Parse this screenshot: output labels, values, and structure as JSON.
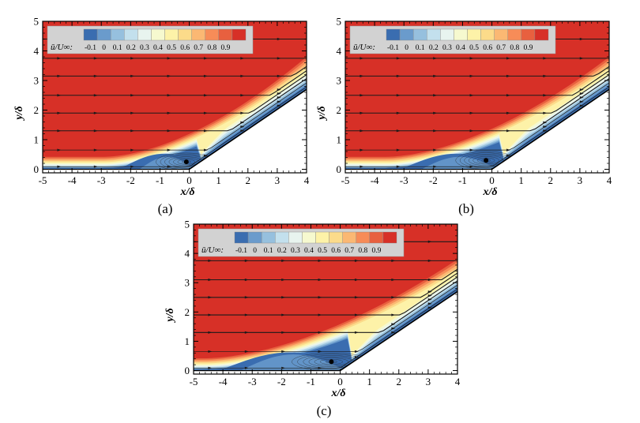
{
  "chart_data": [
    {
      "type": "heatmap",
      "panel": "(a)",
      "title": "",
      "xlabel": "x/δ",
      "ylabel": "y/δ",
      "xlim": [
        -5,
        4
      ],
      "ylim": [
        0,
        5
      ],
      "xticks": [
        "-5",
        "-4",
        "-3",
        "-2",
        "-1",
        "0",
        "1",
        "2",
        "3",
        "4"
      ],
      "yticks": [
        "0",
        "1",
        "2",
        "3",
        "4",
        "5"
      ],
      "grid": false,
      "colorbar": {
        "title": "ū/U∞:",
        "levels": [
          "-0.1",
          "0",
          "0.1",
          "0.2",
          "0.3",
          "0.4",
          "0.5",
          "0.6",
          "0.7",
          "0.8",
          "0.9"
        ],
        "colors": [
          "#3a6db0",
          "#6a9bcc",
          "#96c0de",
          "#c3e0ed",
          "#e8f4ef",
          "#f6f9cf",
          "#fdf2a8",
          "#fcdb8a",
          "#fbb873",
          "#f78c58",
          "#e8603f",
          "#d73027"
        ],
        "placement": "top-left"
      },
      "geometry": {
        "ramp_start_x": 0,
        "ramp_end": [
          4,
          2.7
        ],
        "ramp_angle_deg": 34
      },
      "separation_x": -2.3,
      "vortex_center": [
        -0.1,
        0.25
      ],
      "boundary_layer_top_at_left": 0.4,
      "shear_layer_top_at_right": 3.8,
      "streamlines_y_at_left": [
        4.4,
        3.75,
        3.15,
        2.5,
        1.9,
        1.3,
        0.65,
        0.03
      ]
    },
    {
      "type": "heatmap",
      "panel": "(b)",
      "title": "",
      "xlabel": "x/δ",
      "ylabel": "y/δ",
      "xlim": [
        -5,
        4
      ],
      "ylim": [
        0,
        5
      ],
      "xticks": [
        "-5",
        "-4",
        "-3",
        "-2",
        "-1",
        "0",
        "1",
        "2",
        "3",
        "4"
      ],
      "yticks": [
        "0",
        "1",
        "2",
        "3",
        "4",
        "5"
      ],
      "grid": false,
      "colorbar": {
        "title": "ū/U∞:",
        "levels": [
          "-0.1",
          "0",
          "0.1",
          "0.2",
          "0.3",
          "0.4",
          "0.5",
          "0.6",
          "0.7",
          "0.8",
          "0.9"
        ],
        "colors": [
          "#3a6db0",
          "#6a9bcc",
          "#96c0de",
          "#c3e0ed",
          "#e8f4ef",
          "#f6f9cf",
          "#fdf2a8",
          "#fcdb8a",
          "#fbb873",
          "#f78c58",
          "#e8603f",
          "#d73027"
        ],
        "placement": "top-left"
      },
      "geometry": {
        "ramp_start_x": 0,
        "ramp_end": [
          4,
          2.7
        ],
        "ramp_angle_deg": 34
      },
      "separation_x": -3.0,
      "vortex_center": [
        -0.2,
        0.3
      ],
      "boundary_layer_top_at_left": 0.4,
      "shear_layer_top_at_right": 3.8,
      "streamlines_y_at_left": [
        4.4,
        3.75,
        3.15,
        2.5,
        1.9,
        1.3,
        0.65,
        0.03
      ]
    },
    {
      "type": "heatmap",
      "panel": "(c)",
      "title": "",
      "xlabel": "x/δ",
      "ylabel": "y/δ",
      "xlim": [
        -5,
        4
      ],
      "ylim": [
        0,
        5
      ],
      "xticks": [
        "-5",
        "-4",
        "-3",
        "-2",
        "-1",
        "0",
        "1",
        "2",
        "3",
        "4"
      ],
      "yticks": [
        "0",
        "1",
        "2",
        "3",
        "4",
        "5"
      ],
      "grid": false,
      "colorbar": {
        "title": "ū/U∞:",
        "levels": [
          "-0.1",
          "0",
          "0.1",
          "0.2",
          "0.3",
          "0.4",
          "0.5",
          "0.6",
          "0.7",
          "0.8",
          "0.9"
        ],
        "colors": [
          "#3a6db0",
          "#6a9bcc",
          "#96c0de",
          "#c3e0ed",
          "#e8f4ef",
          "#f6f9cf",
          "#fdf2a8",
          "#fcdb8a",
          "#fbb873",
          "#f78c58",
          "#e8603f",
          "#d73027"
        ],
        "placement": "top-left"
      },
      "geometry": {
        "ramp_start_x": 0,
        "ramp_end": [
          4,
          2.7
        ],
        "ramp_angle_deg": 34
      },
      "separation_x": -4.0,
      "vortex_center": [
        -0.3,
        0.3
      ],
      "boundary_layer_top_at_left": 0.4,
      "shear_layer_top_at_right": 3.8,
      "streamlines_y_at_left": [
        4.4,
        3.75,
        3.1,
        2.5,
        1.9,
        1.3,
        0.65,
        0.03
      ]
    }
  ],
  "captions": [
    "(a)",
    "(b)",
    "(c)"
  ]
}
